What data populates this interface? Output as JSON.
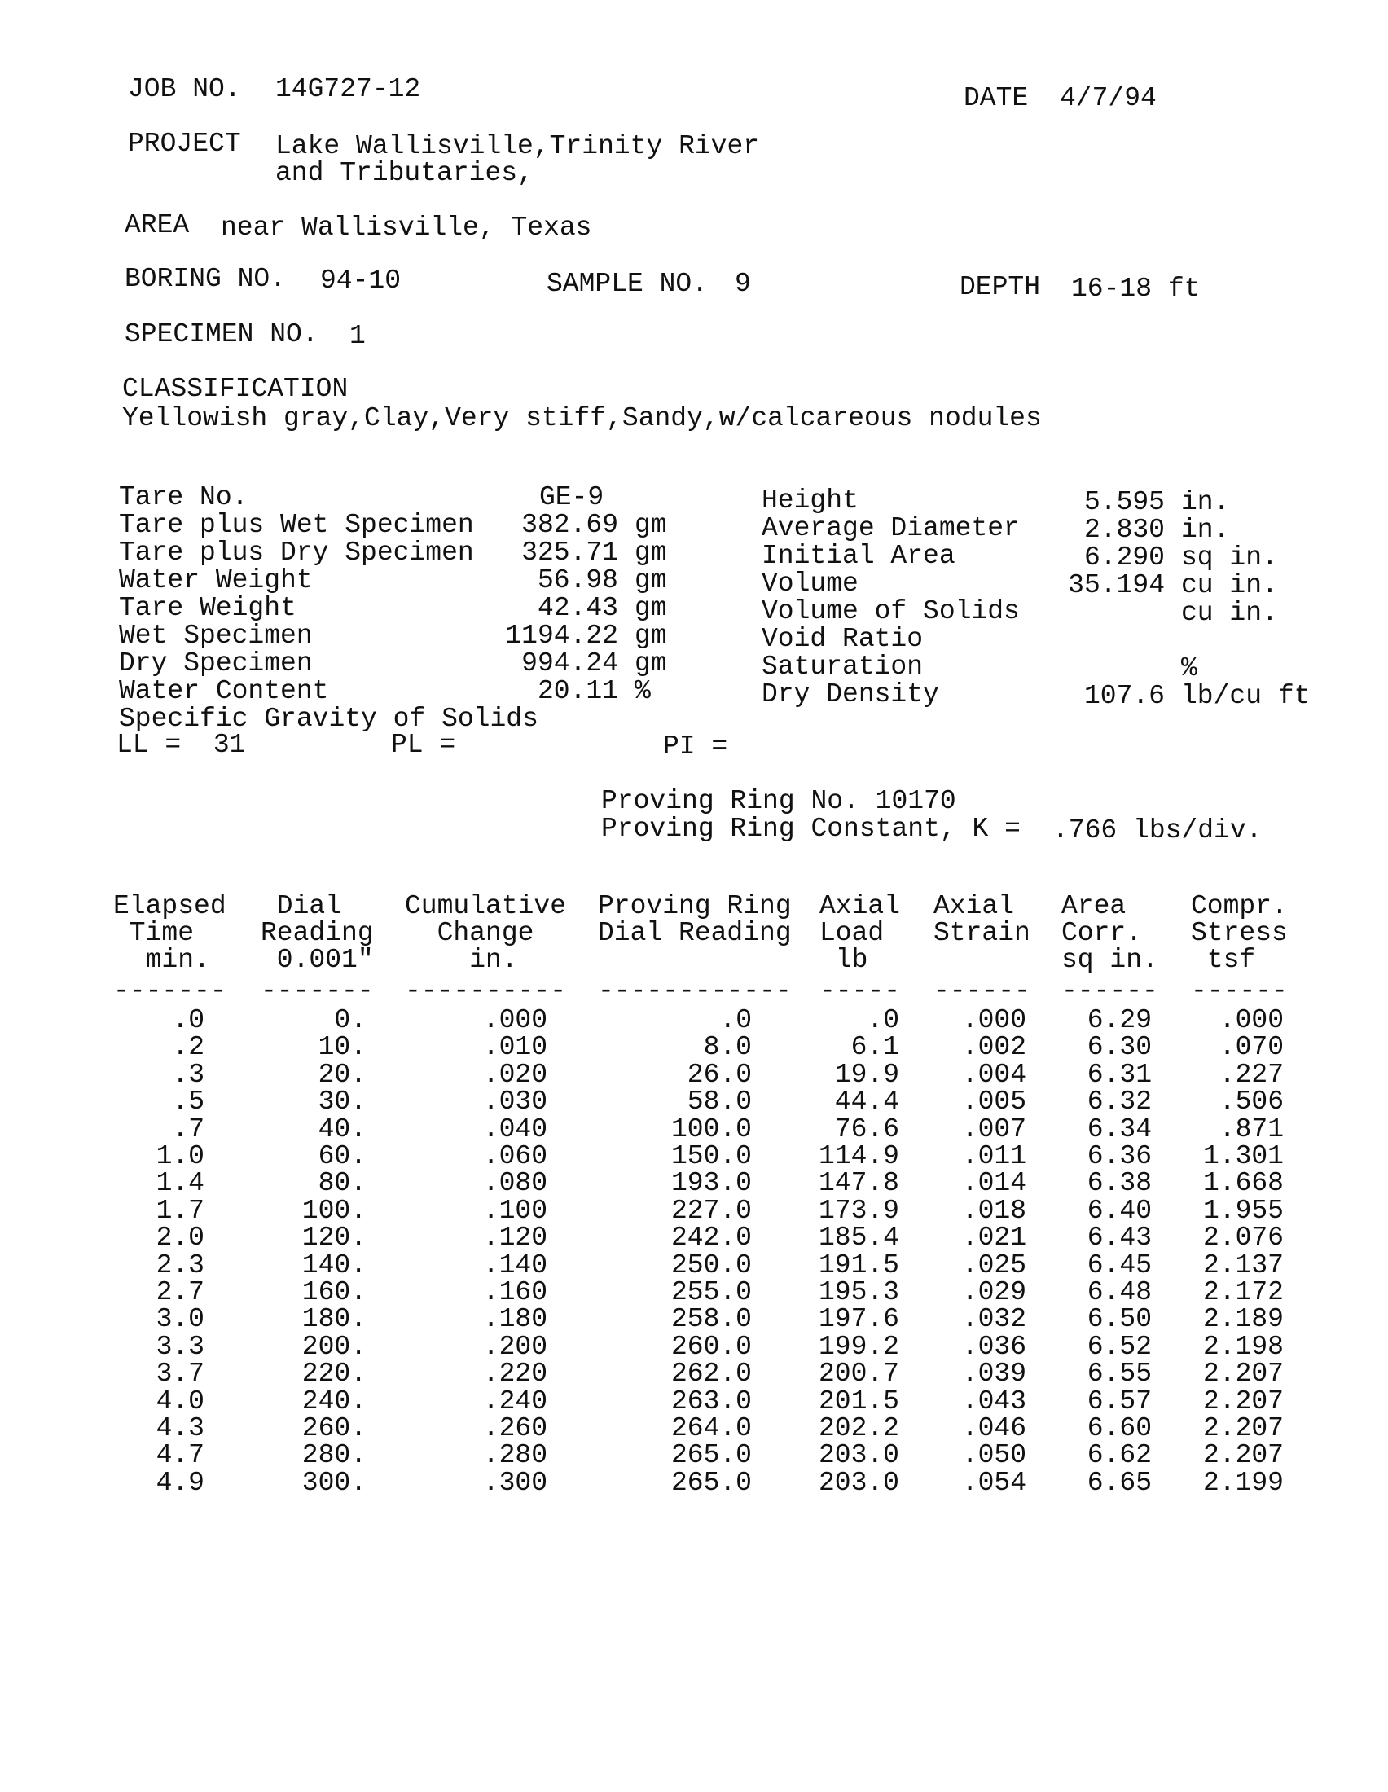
{
  "header": {
    "job_label": "JOB NO.",
    "job_no": "14G727-12",
    "date_label": "DATE",
    "date": "4/7/94",
    "project_label": "PROJECT",
    "project_line1": "Lake Wallisville,Trinity River",
    "project_line2": "and Tributaries,",
    "area_label": "AREA",
    "area": "near Wallisville, Texas",
    "boring_label": "BORING NO.",
    "boring_no": "94-10",
    "sample_label": "SAMPLE NO.",
    "sample_no": "9",
    "depth_label": "DEPTH",
    "depth": "16-18 ft",
    "specimen_label": "SPECIMEN NO.",
    "specimen_no": "1",
    "classification_label": "CLASSIFICATION",
    "classification": "Yellowish gray,Clay,Very stiff,Sandy,w/calcareous nodules"
  },
  "properties_left": [
    {
      "label": "Tare No.",
      "value": "GE-9",
      "unit": ""
    },
    {
      "label": "Tare plus Wet Specimen",
      "value": "382.69",
      "unit": "gm"
    },
    {
      "label": "Tare plus Dry Specimen",
      "value": "325.71",
      "unit": "gm"
    },
    {
      "label": "Water Weight",
      "value": "56.98",
      "unit": "gm"
    },
    {
      "label": "Tare Weight",
      "value": "42.43",
      "unit": "gm"
    },
    {
      "label": "Wet Specimen",
      "value": "1194.22",
      "unit": "gm"
    },
    {
      "label": "Dry Specimen",
      "value": "994.24",
      "unit": "gm"
    },
    {
      "label": "Water Content",
      "value": "20.11",
      "unit": "%"
    },
    {
      "label": "Specific Gravity of Solids",
      "value": "",
      "unit": ""
    }
  ],
  "properties_right": [
    {
      "label": "Height",
      "value": "5.595",
      "unit": "in."
    },
    {
      "label": "Average Diameter",
      "value": "2.830",
      "unit": "in."
    },
    {
      "label": "Initial Area",
      "value": "6.290",
      "unit": "sq in."
    },
    {
      "label": "Volume",
      "value": "35.194",
      "unit": "cu in."
    },
    {
      "label": "Volume of Solids",
      "value": "",
      "unit": "cu in."
    },
    {
      "label": "Void Ratio",
      "value": "",
      "unit": ""
    },
    {
      "label": "Saturation",
      "value": "",
      "unit": "%"
    },
    {
      "label": "Dry Density",
      "value": "107.6",
      "unit": "lb/cu ft"
    }
  ],
  "limits": {
    "ll": "LL =  31",
    "pl": "PL =",
    "pi": "PI ="
  },
  "proving_ring": {
    "number": "Proving Ring No. 10170",
    "constant_label": "Proving Ring Constant, K =",
    "constant": ".766 lbs/div."
  },
  "table": {
    "headers": [
      "Elapsed\n Time\n  min.",
      " Dial\nReading\n 0.001\"",
      "Cumulative\n  Change\n    in.",
      "Proving Ring\nDial Reading",
      "Axial\nLoad\n lb",
      "Axial\nStrain",
      "Area\nCorr.\nsq in.",
      "Compr.\nStress\n tsf"
    ],
    "dashes": [
      "-------",
      "-------",
      "----------",
      "------------",
      "-----",
      "------",
      "------",
      "------"
    ],
    "rows": [
      [
        ".0",
        "0.",
        ".000",
        ".0",
        ".0",
        ".000",
        "6.29",
        ".000"
      ],
      [
        ".2",
        "10.",
        ".010",
        "8.0",
        "6.1",
        ".002",
        "6.30",
        ".070"
      ],
      [
        ".3",
        "20.",
        ".020",
        "26.0",
        "19.9",
        ".004",
        "6.31",
        ".227"
      ],
      [
        ".5",
        "30.",
        ".030",
        "58.0",
        "44.4",
        ".005",
        "6.32",
        ".506"
      ],
      [
        ".7",
        "40.",
        ".040",
        "100.0",
        "76.6",
        ".007",
        "6.34",
        ".871"
      ],
      [
        "1.0",
        "60.",
        ".060",
        "150.0",
        "114.9",
        ".011",
        "6.36",
        "1.301"
      ],
      [
        "1.4",
        "80.",
        ".080",
        "193.0",
        "147.8",
        ".014",
        "6.38",
        "1.668"
      ],
      [
        "1.7",
        "100.",
        ".100",
        "227.0",
        "173.9",
        ".018",
        "6.40",
        "1.955"
      ],
      [
        "2.0",
        "120.",
        ".120",
        "242.0",
        "185.4",
        ".021",
        "6.43",
        "2.076"
      ],
      [
        "2.3",
        "140.",
        ".140",
        "250.0",
        "191.5",
        ".025",
        "6.45",
        "2.137"
      ],
      [
        "2.7",
        "160.",
        ".160",
        "255.0",
        "195.3",
        ".029",
        "6.48",
        "2.172"
      ],
      [
        "3.0",
        "180.",
        ".180",
        "258.0",
        "197.6",
        ".032",
        "6.50",
        "2.189"
      ],
      [
        "3.3",
        "200.",
        ".200",
        "260.0",
        "199.2",
        ".036",
        "6.52",
        "2.198"
      ],
      [
        "3.7",
        "220.",
        ".220",
        "262.0",
        "200.7",
        ".039",
        "6.55",
        "2.207"
      ],
      [
        "4.0",
        "240.",
        ".240",
        "263.0",
        "201.5",
        ".043",
        "6.57",
        "2.207"
      ],
      [
        "4.3",
        "260.",
        ".260",
        "264.0",
        "202.2",
        ".046",
        "6.60",
        "2.207"
      ],
      [
        "4.7",
        "280.",
        ".280",
        "265.0",
        "203.0",
        ".050",
        "6.62",
        "2.207"
      ],
      [
        "4.9",
        "300.",
        ".300",
        "265.0",
        "203.0",
        ".054",
        "6.65",
        "2.199"
      ]
    ]
  }
}
